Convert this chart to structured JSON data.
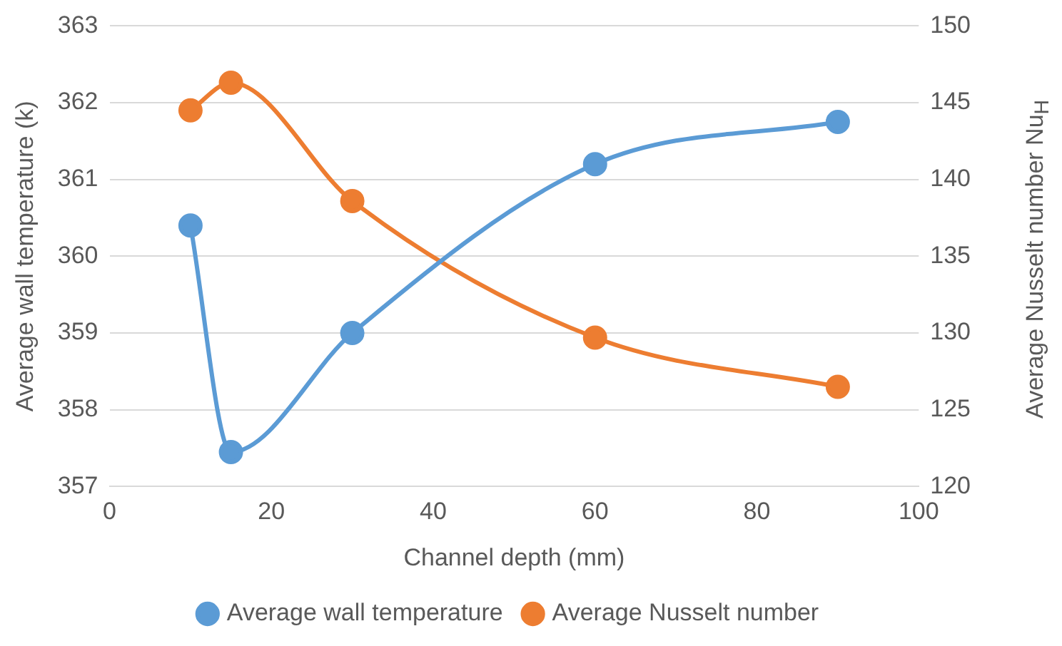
{
  "chart_data": {
    "type": "line",
    "xlabel": "Channel depth (mm)",
    "ylabel": "Average wall temperature (k)",
    "y2label": "Average Nusselt number Nu$_{H}$",
    "x": [
      10,
      15,
      30,
      60,
      90
    ],
    "series": [
      {
        "name": "Average wall temperature",
        "color": "#5b9bd5",
        "values": [
          360.4,
          357.45,
          359.0,
          361.2,
          361.75
        ]
      },
      {
        "name": "Average Nusselt number",
        "color": "#ed7d31",
        "values": [
          144.5,
          146.3,
          138.6,
          129.7,
          126.5
        ],
        "axis": "y2"
      }
    ],
    "xlim": [
      0,
      100
    ],
    "xticks": [
      0,
      20,
      40,
      60,
      80,
      100
    ],
    "ylim": [
      357,
      363
    ],
    "yticks": [
      357,
      358,
      359,
      360,
      361,
      362,
      363
    ],
    "y2lim": [
      120,
      150
    ],
    "y2ticks": [
      120,
      125,
      130,
      135,
      140,
      145,
      150
    ],
    "grid": "y",
    "legend": "bottom",
    "marker": "circle",
    "line_style": "solid"
  }
}
